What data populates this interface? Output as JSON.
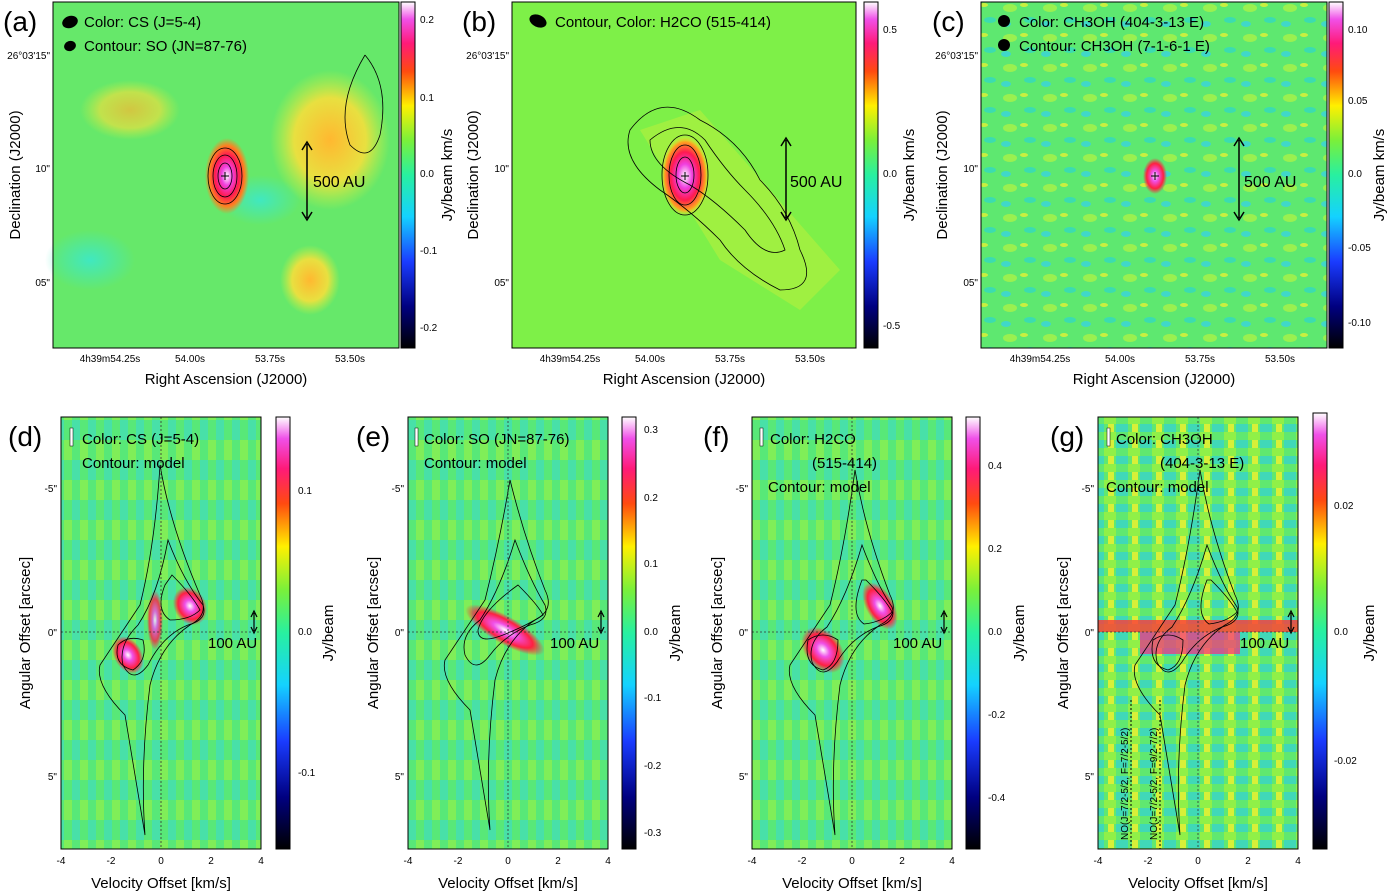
{
  "figure": {
    "top_row": {
      "xlabel": "Right Ascension (J2000)",
      "ylabel": "Declination (J2000)",
      "cbar_label": "Jy/beam  km/s",
      "xticks": [
        "4h39m54.25s",
        "54.00s",
        "53.75s",
        "53.50s"
      ],
      "yticks": [
        "26°03'15\"",
        "10\"",
        "05\""
      ],
      "scale_label": "500 AU"
    },
    "bottom_row": {
      "xlabel": "Velocity Offset [km/s]",
      "ylabel": "Angular Offset [arcsec]",
      "cbar_label": "Jy/beam",
      "xticks": [
        "-4",
        "-2",
        "0",
        "2",
        "4"
      ],
      "yticks": [
        "-5\"",
        "0\"",
        "5\""
      ],
      "scale_label": "100 AU"
    },
    "panels": [
      {
        "id": "a",
        "label": "(a)",
        "title1": "Color: CS (J=5-4)",
        "title2": "Contour: SO (JN=87-76)",
        "cbar_ticks": [
          "0.2",
          "0.1",
          "0.0",
          "-0.1",
          "-0.2"
        ]
      },
      {
        "id": "b",
        "label": "(b)",
        "title1": "Contour, Color: H2CO (515-414)",
        "title2": "",
        "cbar_ticks": [
          "0.5",
          "0.0",
          "-0.5"
        ]
      },
      {
        "id": "c",
        "label": "(c)",
        "title1": "Color: CH3OH (404-3-13 E)",
        "title2": "Contour: CH3OH (7-1-6-1 E)",
        "cbar_ticks": [
          "0.10",
          "0.05",
          "0.0",
          "-0.05",
          "-0.10"
        ]
      },
      {
        "id": "d",
        "label": "(d)",
        "title1": "Color: CS (J=5-4)",
        "title2": "Contour: model",
        "title3": "",
        "cbar_ticks": [
          "0.1",
          "0.0",
          "-0.1"
        ]
      },
      {
        "id": "e",
        "label": "(e)",
        "title1": "Color: SO (JN=87-76)",
        "title2": "Contour: model",
        "title3": "",
        "cbar_ticks": [
          "0.3",
          "0.2",
          "0.1",
          "0.0",
          "-0.1",
          "-0.2",
          "-0.3"
        ]
      },
      {
        "id": "f",
        "label": "(f)",
        "title1": "Color: H2CO",
        "title2": "(515-414)",
        "title3": "Contour: model",
        "cbar_ticks": [
          "0.4",
          "0.2",
          "0.0",
          "-0.2",
          "-0.4"
        ]
      },
      {
        "id": "g",
        "label": "(g)",
        "title1": "Color: CH3OH",
        "title2": "(404-3-13 E)",
        "title3": "Contour: model",
        "cbar_ticks": [
          "0.02",
          "0.0",
          "-0.02"
        ]
      }
    ],
    "no_lines": [
      "NO(J=7/2-5/2, F=7/2-5/2)",
      "NO(J=7/2-5/2, F=9/2-7/2)"
    ]
  }
}
